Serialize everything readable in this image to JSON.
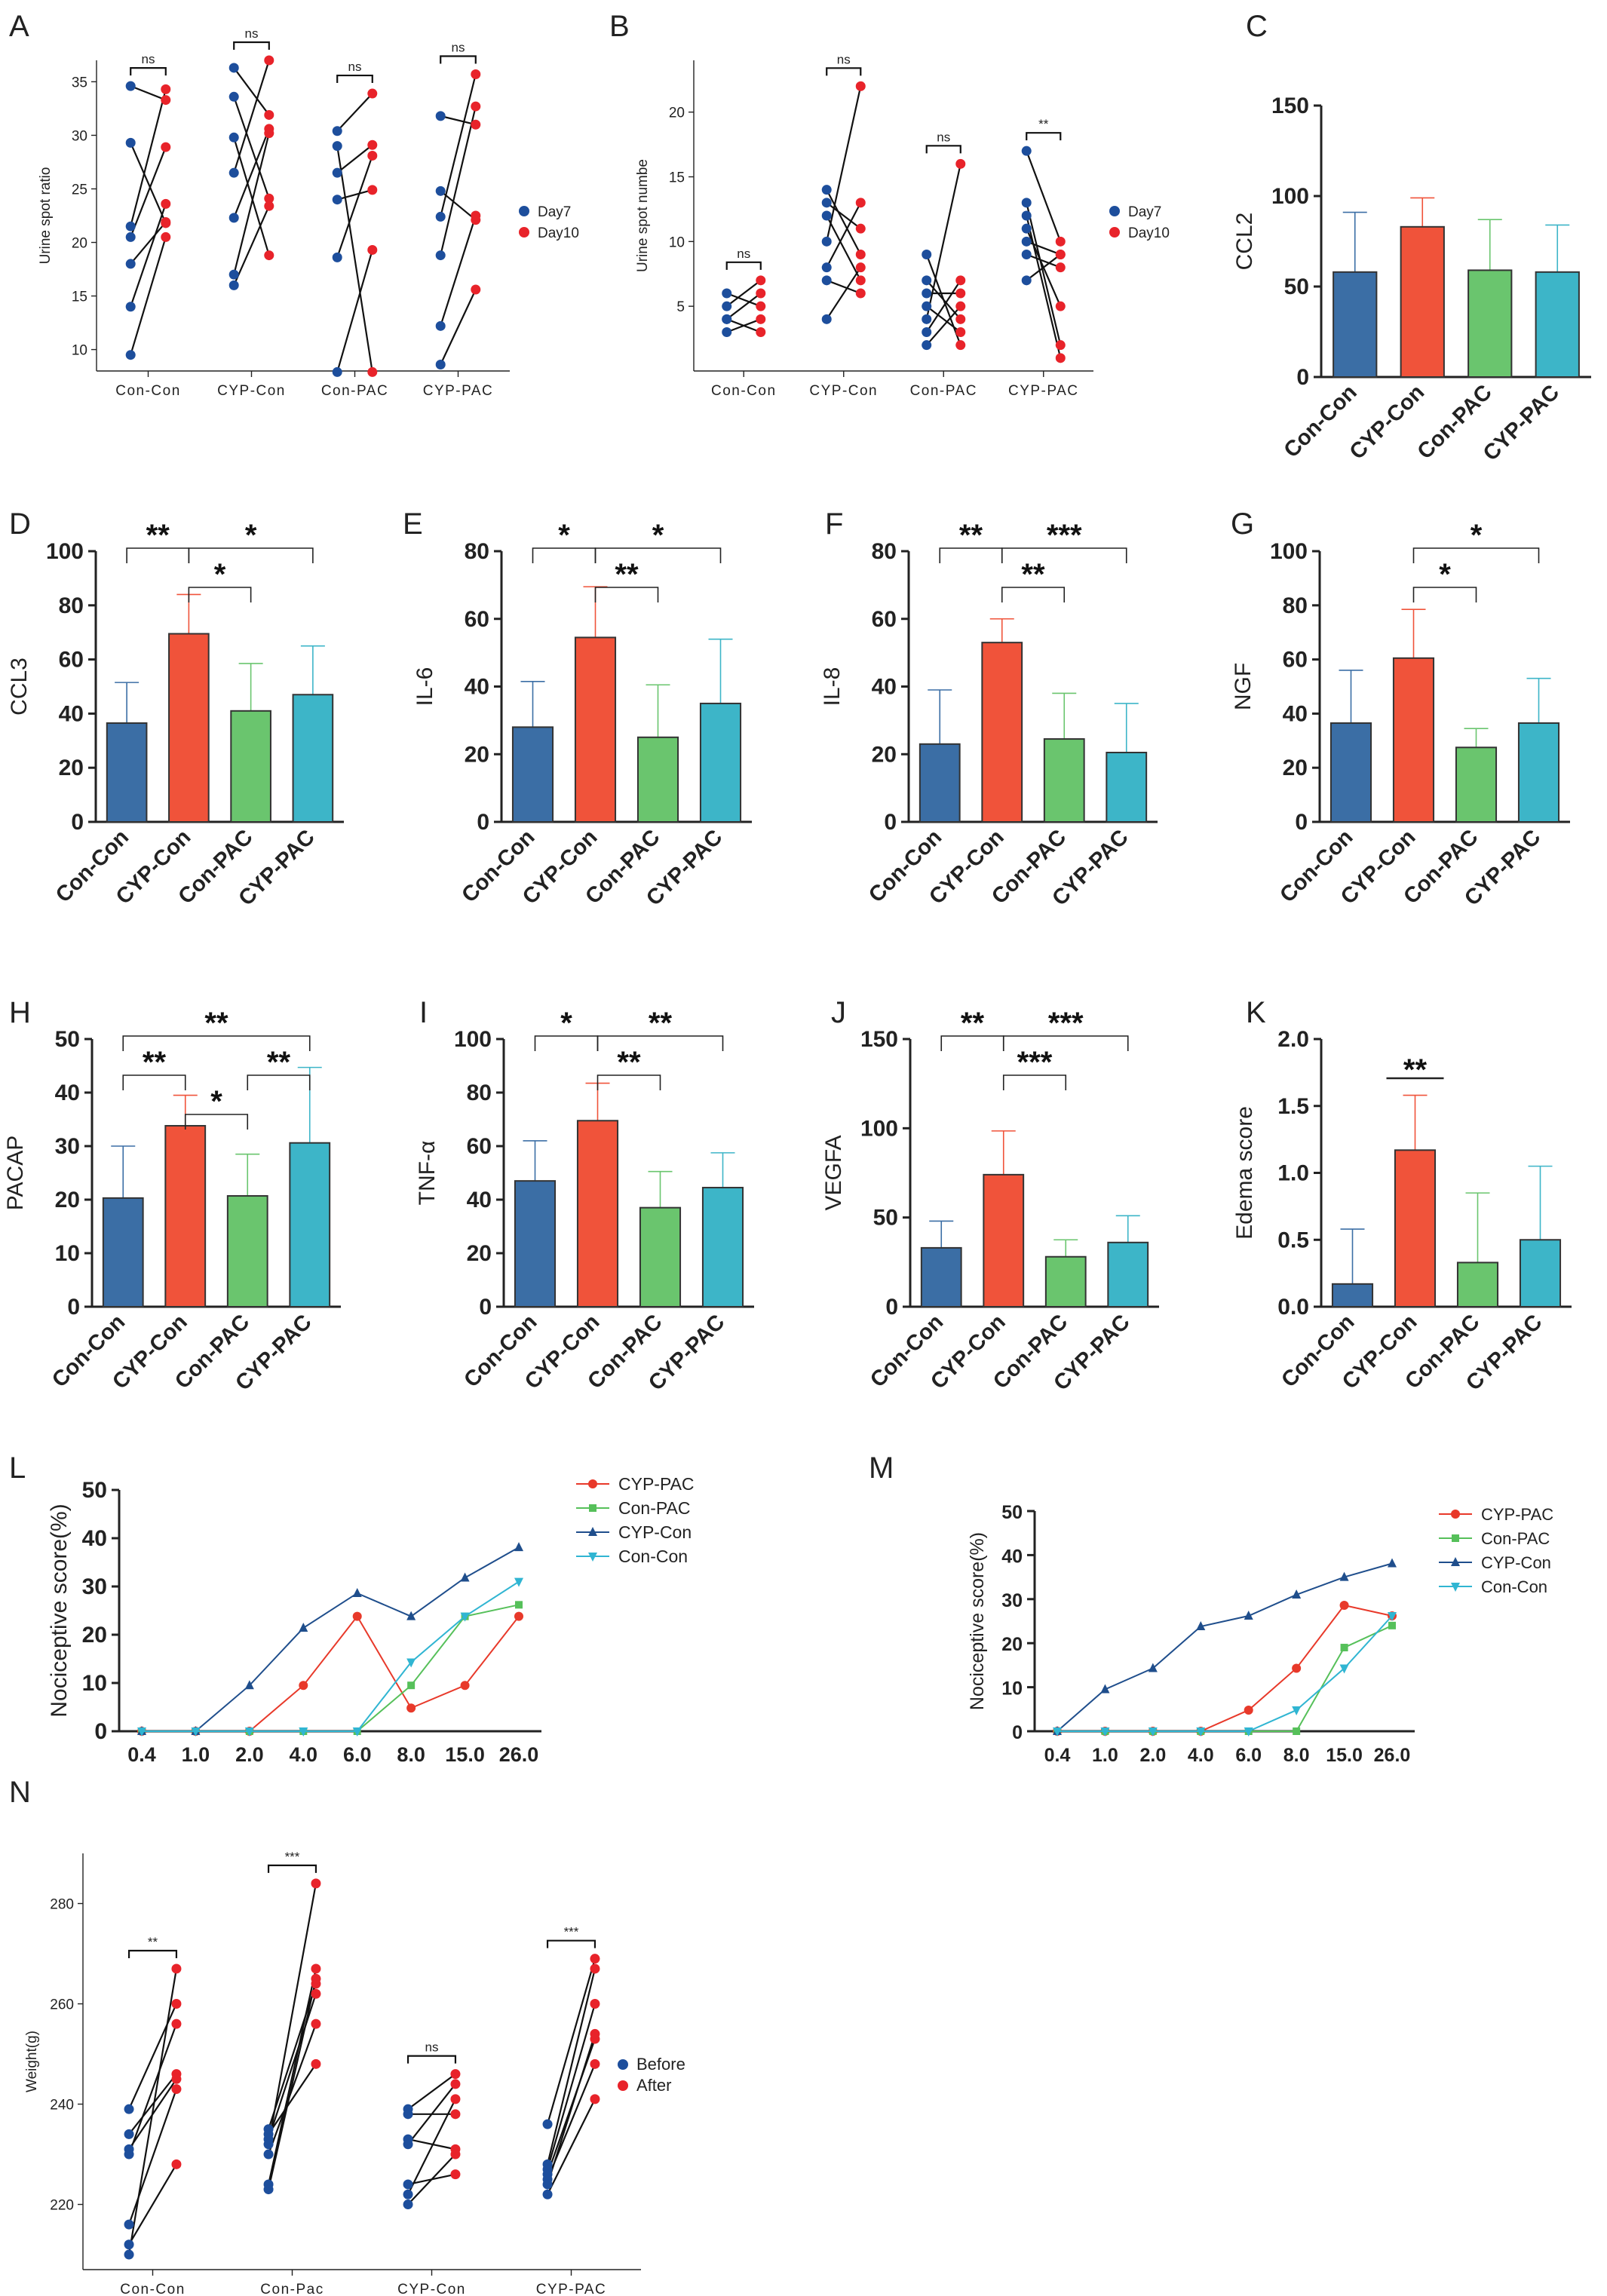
{
  "figure": {
    "description_note": "",
    "colors": {
      "con_con": "#3b6ea5",
      "cyp_con": "#f0533a",
      "con_pac": "#6ac56e",
      "cyp_pac": "#3db5c8",
      "day7": "#1d4e9c",
      "day10": "#e8232a",
      "line_cyp_pac": "#e8392a",
      "line_con_pac": "#56c05a",
      "line_cyp_con": "#1f4e8c",
      "line_con_con": "#30b5d2"
    }
  },
  "chart_data": [
    {
      "panel": "A",
      "type": "scatter",
      "style": "paired",
      "ylabel": "Urine spot ratio",
      "xlabel": "",
      "ylim": [
        8,
        37
      ],
      "yticks": [
        10,
        15,
        20,
        25,
        30,
        35
      ],
      "categories": [
        "Con-Con",
        "CYP-Con",
        "Con-PAC",
        "CYP-PAC"
      ],
      "legend": [
        "Day7",
        "Day10"
      ],
      "pairs": [
        [
          [
            34.6,
            33.3
          ],
          [
            29.3,
            21.8
          ],
          [
            21.5,
            34.3
          ],
          [
            20.5,
            28.9
          ],
          [
            18.0,
            21.9
          ],
          [
            14.0,
            23.6
          ],
          [
            9.5,
            20.5
          ]
        ],
        [
          [
            36.3,
            31.9
          ],
          [
            33.6,
            24.1
          ],
          [
            29.8,
            18.8
          ],
          [
            26.5,
            37.0
          ],
          [
            22.3,
            30.6
          ],
          [
            17.0,
            30.2
          ],
          [
            16.0,
            23.4
          ]
        ],
        [
          [
            30.4,
            33.9
          ],
          [
            29.0,
            7.9
          ],
          [
            26.5,
            29.1
          ],
          [
            24.0,
            24.9
          ],
          [
            18.6,
            28.1
          ],
          [
            7.9,
            19.3
          ]
        ],
        [
          [
            31.8,
            31.0
          ],
          [
            24.8,
            22.1
          ],
          [
            22.4,
            35.7
          ],
          [
            18.8,
            32.7
          ],
          [
            12.2,
            22.5
          ],
          [
            8.6,
            15.6
          ]
        ]
      ],
      "significance": [
        {
          "groups": [
            0,
            0
          ],
          "label": "ns"
        },
        {
          "groups": [
            1,
            1
          ],
          "label": "ns"
        },
        {
          "groups": [
            2,
            2
          ],
          "label": "ns"
        },
        {
          "groups": [
            3,
            3
          ],
          "label": "ns"
        }
      ]
    },
    {
      "panel": "B",
      "type": "scatter",
      "style": "paired",
      "ylabel": "Urine spot numbe",
      "xlabel": "",
      "ylim": [
        0,
        24
      ],
      "yticks": [
        5,
        10,
        15,
        20
      ],
      "categories": [
        "Con-Con",
        "CYP-Con",
        "Con-PAC",
        "CYP-PAC"
      ],
      "legend": [
        "Day7",
        "Day10"
      ],
      "pairs": [
        [
          [
            6,
            5
          ],
          [
            5,
            7
          ],
          [
            4,
            3
          ],
          [
            4,
            6
          ],
          [
            3,
            4
          ]
        ],
        [
          [
            14,
            9
          ],
          [
            13,
            11
          ],
          [
            12,
            7
          ],
          [
            10,
            22
          ],
          [
            8,
            13
          ],
          [
            7,
            6
          ],
          [
            4,
            8
          ]
        ],
        [
          [
            9,
            2
          ],
          [
            7,
            4
          ],
          [
            6,
            6
          ],
          [
            5,
            3
          ],
          [
            4,
            16
          ],
          [
            3,
            7
          ],
          [
            2,
            5
          ]
        ],
        [
          [
            17,
            10
          ],
          [
            13,
            2
          ],
          [
            12,
            1
          ],
          [
            11,
            5
          ],
          [
            10,
            9
          ],
          [
            9,
            8
          ],
          [
            7,
            9
          ]
        ]
      ],
      "significance": [
        {
          "groups": [
            0,
            0
          ],
          "label": "ns"
        },
        {
          "groups": [
            1,
            1
          ],
          "label": "ns"
        },
        {
          "groups": [
            2,
            2
          ],
          "label": "ns"
        },
        {
          "groups": [
            3,
            3
          ],
          "label": "**"
        }
      ]
    },
    {
      "panel": "C",
      "type": "bar",
      "ylabel": "CCL2",
      "xlabel": "",
      "ylim": [
        0,
        150
      ],
      "yticks": [
        0,
        50,
        100,
        150
      ],
      "categories": [
        "Con-Con",
        "CYP-Con",
        "Con-PAC",
        "CYP-PAC"
      ],
      "values": [
        58,
        83,
        59,
        58
      ],
      "errors": [
        33,
        16,
        28,
        26
      ],
      "significance": []
    },
    {
      "panel": "D",
      "type": "bar",
      "ylabel": "CCL3",
      "xlabel": "",
      "ylim": [
        0,
        100
      ],
      "yticks": [
        0,
        20,
        40,
        60,
        80,
        100
      ],
      "categories": [
        "Con-Con",
        "CYP-Con",
        "Con-PAC",
        "CYP-PAC"
      ],
      "values": [
        36.5,
        69.5,
        41,
        47
      ],
      "errors": [
        15,
        14.5,
        17.5,
        18
      ],
      "significance": [
        {
          "groups": [
            0,
            1
          ],
          "label": "**",
          "level": 0
        },
        {
          "groups": [
            1,
            2
          ],
          "label": "*",
          "level": 1
        },
        {
          "groups": [
            1,
            3
          ],
          "label": "*",
          "level": 0
        }
      ]
    },
    {
      "panel": "E",
      "type": "bar",
      "ylabel": "IL-6",
      "xlabel": "",
      "ylim": [
        0,
        80
      ],
      "yticks": [
        0,
        20,
        40,
        60,
        80
      ],
      "categories": [
        "Con-Con",
        "CYP-Con",
        "Con-PAC",
        "CYP-PAC"
      ],
      "values": [
        28,
        54.5,
        25,
        35
      ],
      "errors": [
        13.5,
        15,
        15.5,
        19
      ],
      "significance": [
        {
          "groups": [
            0,
            1
          ],
          "label": "*",
          "level": 0
        },
        {
          "groups": [
            1,
            2
          ],
          "label": "**",
          "level": 1
        },
        {
          "groups": [
            1,
            3
          ],
          "label": "*",
          "level": 0
        }
      ]
    },
    {
      "panel": "F",
      "type": "bar",
      "ylabel": "IL-8",
      "xlabel": "",
      "ylim": [
        0,
        80
      ],
      "yticks": [
        0,
        20,
        40,
        60,
        80
      ],
      "categories": [
        "Con-Con",
        "CYP-Con",
        "Con-PAC",
        "CYP-PAC"
      ],
      "values": [
        23,
        53,
        24.5,
        20.5
      ],
      "errors": [
        16,
        7,
        13.5,
        14.5
      ],
      "significance": [
        {
          "groups": [
            0,
            1
          ],
          "label": "**",
          "level": 0
        },
        {
          "groups": [
            1,
            2
          ],
          "label": "**",
          "level": 1
        },
        {
          "groups": [
            1,
            3
          ],
          "label": "***",
          "level": 0
        }
      ]
    },
    {
      "panel": "G",
      "type": "bar",
      "ylabel": "NGF",
      "xlabel": "",
      "ylim": [
        0,
        100
      ],
      "yticks": [
        0,
        20,
        40,
        60,
        80,
        100
      ],
      "categories": [
        "Con-Con",
        "CYP-Con",
        "Con-PAC",
        "CYP-PAC"
      ],
      "values": [
        36.5,
        60.5,
        27.5,
        36.5
      ],
      "errors": [
        19.5,
        18,
        7,
        16.5
      ],
      "significance": [
        {
          "groups": [
            1,
            2
          ],
          "label": "*",
          "level": 1
        },
        {
          "groups": [
            1,
            3
          ],
          "label": "*",
          "level": 0
        }
      ]
    },
    {
      "panel": "H",
      "type": "bar",
      "ylabel": "PACAP",
      "xlabel": "",
      "ylim": [
        0,
        50
      ],
      "yticks": [
        0,
        10,
        20,
        30,
        40,
        50
      ],
      "categories": [
        "Con-Con",
        "CYP-Con",
        "Con-PAC",
        "CYP-PAC"
      ],
      "values": [
        20.3,
        33.8,
        20.7,
        30.6
      ],
      "errors": [
        9.7,
        5.7,
        7.8,
        14.1
      ],
      "significance": [
        {
          "groups": [
            0,
            1
          ],
          "label": "**",
          "level": 1
        },
        {
          "groups": [
            1,
            2
          ],
          "label": "*",
          "level": 2
        },
        {
          "groups": [
            2,
            3
          ],
          "label": "**",
          "level": 1
        },
        {
          "groups": [
            0,
            3
          ],
          "label": "**",
          "level": 0
        }
      ]
    },
    {
      "panel": "I",
      "type": "bar",
      "ylabel": "TNF-α",
      "xlabel": "",
      "ylim": [
        0,
        100
      ],
      "yticks": [
        0,
        20,
        40,
        60,
        80,
        100
      ],
      "categories": [
        "Con-Con",
        "CYP-Con",
        "Con-PAC",
        "CYP-PAC"
      ],
      "values": [
        47,
        69.5,
        37,
        44.5
      ],
      "errors": [
        15,
        14,
        13.5,
        13
      ],
      "significance": [
        {
          "groups": [
            0,
            1
          ],
          "label": "*",
          "level": 0
        },
        {
          "groups": [
            1,
            2
          ],
          "label": "**",
          "level": 1
        },
        {
          "groups": [
            1,
            3
          ],
          "label": "**",
          "level": 0
        }
      ]
    },
    {
      "panel": "J",
      "type": "bar",
      "ylabel": "VEGFA",
      "xlabel": "",
      "ylim": [
        0,
        150
      ],
      "yticks": [
        0,
        50,
        100,
        150
      ],
      "categories": [
        "Con-Con",
        "CYP-Con",
        "Con-PAC",
        "CYP-PAC"
      ],
      "values": [
        33,
        74,
        28,
        36
      ],
      "errors": [
        15,
        24.5,
        9.5,
        15
      ],
      "significance": [
        {
          "groups": [
            0,
            1
          ],
          "label": "**",
          "level": 0
        },
        {
          "groups": [
            1,
            2
          ],
          "label": "***",
          "level": 1
        },
        {
          "groups": [
            1,
            3
          ],
          "label": "***",
          "level": 0
        }
      ]
    },
    {
      "panel": "K",
      "type": "bar",
      "ylabel": "Edema score",
      "xlabel": "",
      "ylim": [
        0,
        2.0
      ],
      "yticks": [
        0.0,
        0.5,
        1.0,
        1.5,
        2.0
      ],
      "categories": [
        "Con-Con",
        "CYP-Con",
        "Con-PAC",
        "CYP-PAC"
      ],
      "values": [
        0.17,
        1.17,
        0.33,
        0.5
      ],
      "errors": [
        0.41,
        0.41,
        0.52,
        0.55
      ],
      "significance": [
        {
          "groups": [
            1,
            1
          ],
          "label": "**",
          "level": 0
        }
      ]
    },
    {
      "panel": "L",
      "type": "line",
      "ylabel": "Nociceptive score(%)",
      "xlabel": "",
      "ylim": [
        0,
        50
      ],
      "yticks": [
        0,
        10,
        20,
        30,
        40,
        50
      ],
      "x": [
        "0.4",
        "1.0",
        "2.0",
        "4.0",
        "6.0",
        "8.0",
        "15.0",
        "26.0"
      ],
      "legend_position": "top-right",
      "series": [
        {
          "name": "CYP-PAC",
          "values": [
            0,
            0,
            0,
            9.5,
            23.8,
            4.8,
            9.5,
            23.8
          ],
          "marker": "circle"
        },
        {
          "name": "Con-PAC",
          "values": [
            0,
            0,
            0,
            0,
            0,
            9.5,
            23.8,
            26.2
          ],
          "marker": "square"
        },
        {
          "name": "CYP-Con",
          "values": [
            0,
            0,
            9.5,
            21.4,
            28.6,
            23.8,
            31.8,
            38.1
          ],
          "marker": "triangle-up"
        },
        {
          "name": "Con-Con",
          "values": [
            0,
            0,
            0,
            0,
            0,
            14.3,
            23.8,
            31.0
          ],
          "marker": "triangle-down"
        }
      ]
    },
    {
      "panel": "M",
      "type": "line",
      "ylabel": "Nociceptive score(%)",
      "xlabel": "",
      "ylim": [
        0,
        50
      ],
      "yticks": [
        0,
        10,
        20,
        30,
        40,
        50
      ],
      "x": [
        "0.4",
        "1.0",
        "2.0",
        "4.0",
        "6.0",
        "8.0",
        "15.0",
        "26.0"
      ],
      "legend_position": "top-right",
      "series": [
        {
          "name": "CYP-PAC",
          "values": [
            0,
            0,
            0,
            0,
            4.8,
            14.3,
            28.6,
            26.2
          ],
          "marker": "circle"
        },
        {
          "name": "Con-PAC",
          "values": [
            0,
            0,
            0,
            0,
            0,
            0,
            19.0,
            24.0
          ],
          "marker": "square"
        },
        {
          "name": "CYP-Con",
          "values": [
            0,
            9.5,
            14.3,
            23.8,
            26.2,
            31.0,
            35.0,
            38.1
          ],
          "marker": "triangle-up"
        },
        {
          "name": "Con-Con",
          "values": [
            0,
            0,
            0,
            0,
            0,
            4.8,
            14.3,
            26.2
          ],
          "marker": "triangle-down"
        }
      ]
    },
    {
      "panel": "N",
      "type": "scatter",
      "style": "paired",
      "ylabel": "Weight(g)",
      "xlabel": "",
      "ylim": [
        207,
        290
      ],
      "yticks": [
        220,
        240,
        260,
        280
      ],
      "categories": [
        "Con-Con",
        "Con-Pac",
        "CYP-Con",
        "CYP-PAC"
      ],
      "legend": [
        "Before",
        "After"
      ],
      "pairs": [
        [
          [
            239,
            260
          ],
          [
            234,
            246
          ],
          [
            231,
            245
          ],
          [
            230,
            256
          ],
          [
            216,
            243
          ],
          [
            212,
            228
          ],
          [
            210,
            267
          ]
        ],
        [
          [
            235,
            264
          ],
          [
            234,
            248
          ],
          [
            233,
            262
          ],
          [
            232,
            284
          ],
          [
            230,
            256
          ],
          [
            224,
            267
          ],
          [
            223,
            265
          ]
        ],
        [
          [
            239,
            246
          ],
          [
            238,
            238
          ],
          [
            233,
            231
          ],
          [
            232,
            244
          ],
          [
            224,
            226
          ],
          [
            222,
            241
          ],
          [
            220,
            230
          ]
        ],
        [
          [
            236,
            269
          ],
          [
            228,
            267
          ],
          [
            227,
            260
          ],
          [
            226,
            253
          ],
          [
            225,
            248
          ],
          [
            224,
            254
          ],
          [
            222,
            241
          ]
        ]
      ],
      "significance": [
        {
          "groups": [
            0,
            0
          ],
          "label": "**"
        },
        {
          "groups": [
            1,
            1
          ],
          "label": "***"
        },
        {
          "groups": [
            2,
            2
          ],
          "label": "ns"
        },
        {
          "groups": [
            3,
            3
          ],
          "label": "***"
        }
      ]
    }
  ]
}
